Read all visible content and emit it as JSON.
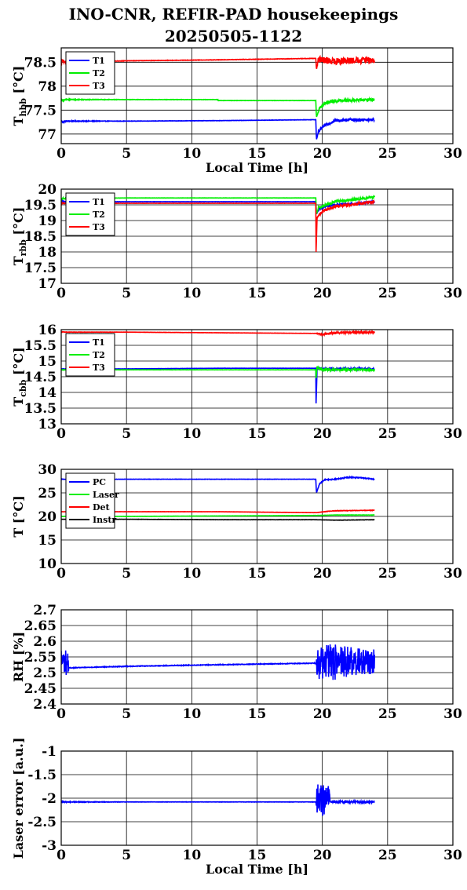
{
  "title": {
    "line1": "INO-CNR, REFIR-PAD housekeepings",
    "line2": "20250505-1122"
  },
  "colors": {
    "blue": "#0000ff",
    "green": "#00ee00",
    "red": "#ff0000",
    "black": "#000000"
  },
  "chart_data": [
    {
      "type": "line",
      "ylabel": "T_hbb [°C]",
      "xlabel": "Local Time [h]",
      "xlim": [
        0,
        30
      ],
      "ylim": [
        76.8,
        78.8
      ],
      "xticks": [
        "0",
        "5",
        "10",
        "15",
        "20",
        "25",
        "30"
      ],
      "yticks": [
        "77",
        "77.5",
        "78",
        "78.5"
      ],
      "ytick_values": [
        77,
        77.5,
        78,
        78.5
      ],
      "grid": true,
      "legend_position": "top-left",
      "series": [
        {
          "name": "T1",
          "color": "#0000ff",
          "x": [
            0,
            0.1,
            0.3,
            5,
            12,
            19.5,
            19.55,
            19.7,
            20,
            20.5,
            21,
            22,
            24
          ],
          "y": [
            77.28,
            77.25,
            77.27,
            77.27,
            77.28,
            77.3,
            76.88,
            77.05,
            77.15,
            77.22,
            77.28,
            77.3,
            77.3
          ],
          "noise": [
            0.03,
            0.03,
            0.01,
            0.003,
            0.003,
            0.003,
            0,
            0.03,
            0.03,
            0.03,
            0.03,
            0.03,
            0.03
          ]
        },
        {
          "name": "T2",
          "color": "#00ee00",
          "x": [
            0,
            0.3,
            5,
            12,
            12.01,
            19.5,
            19.55,
            19.8,
            20.2,
            20.7,
            21.5,
            24
          ],
          "y": [
            77.7,
            77.72,
            77.72,
            77.72,
            77.7,
            77.7,
            77.35,
            77.55,
            77.64,
            77.68,
            77.7,
            77.72
          ],
          "noise": [
            0.03,
            0.01,
            0.003,
            0.003,
            0.003,
            0.003,
            0,
            0.03,
            0.03,
            0.03,
            0.03,
            0.03
          ]
        },
        {
          "name": "T3",
          "color": "#ff0000",
          "x": [
            0,
            0.3,
            5,
            12,
            19.5,
            19.55,
            19.7,
            20,
            21,
            24
          ],
          "y": [
            78.52,
            78.5,
            78.53,
            78.55,
            78.58,
            78.35,
            78.55,
            78.55,
            78.52,
            78.55
          ],
          "noise": [
            0.08,
            0.02,
            0.004,
            0.004,
            0.004,
            0,
            0.07,
            0.07,
            0.07,
            0.07
          ]
        }
      ]
    },
    {
      "type": "line",
      "ylabel": "T_rbb [°C]",
      "xlim": [
        0,
        30
      ],
      "ylim": [
        17,
        20
      ],
      "xticks": [
        "0",
        "5",
        "10",
        "15",
        "20",
        "25",
        "30"
      ],
      "yticks": [
        "17",
        "17.5",
        "18",
        "18.5",
        "19",
        "19.5",
        "20"
      ],
      "ytick_values": [
        17,
        17.5,
        18,
        18.5,
        19,
        19.5,
        20
      ],
      "grid": true,
      "legend_position": "top-left",
      "series": [
        {
          "name": "T1",
          "color": "#0000ff",
          "x": [
            0,
            0.3,
            5,
            12,
            19.5,
            19.55,
            19.7,
            20.2,
            21,
            22,
            23,
            24
          ],
          "y": [
            19.6,
            19.6,
            19.6,
            19.6,
            19.6,
            19.2,
            19.35,
            19.45,
            19.5,
            19.52,
            19.55,
            19.6
          ],
          "noise": [
            0.03,
            0.01,
            0.003,
            0.003,
            0.003,
            0,
            0.03,
            0.03,
            0.03,
            0.03,
            0.03,
            0.03
          ]
        },
        {
          "name": "T2",
          "color": "#00ee00",
          "x": [
            0,
            0.3,
            5,
            12,
            19.5,
            19.55,
            19.7,
            20.2,
            21,
            22,
            23,
            24
          ],
          "y": [
            19.7,
            19.7,
            19.72,
            19.72,
            19.72,
            19.2,
            19.4,
            19.5,
            19.6,
            19.65,
            19.7,
            19.75
          ],
          "noise": [
            0.03,
            0.01,
            0.003,
            0.003,
            0.003,
            0,
            0.04,
            0.04,
            0.04,
            0.04,
            0.04,
            0.04
          ]
        },
        {
          "name": "T3",
          "color": "#ff0000",
          "x": [
            0,
            0.3,
            5,
            12,
            19.5,
            19.52,
            19.6,
            20,
            21,
            22,
            23,
            24
          ],
          "y": [
            19.55,
            19.55,
            19.55,
            19.55,
            19.55,
            18.0,
            19.1,
            19.3,
            19.45,
            19.5,
            19.55,
            19.6
          ],
          "noise": [
            0.03,
            0.01,
            0.003,
            0.003,
            0.003,
            0,
            0.04,
            0.04,
            0.04,
            0.04,
            0.04,
            0.04
          ]
        }
      ]
    },
    {
      "type": "line",
      "ylabel": "T_cbb [°C]",
      "xlim": [
        0,
        30
      ],
      "ylim": [
        13,
        16
      ],
      "xticks": [
        "0",
        "5",
        "10",
        "15",
        "20",
        "25",
        "30"
      ],
      "yticks": [
        "13",
        "13.5",
        "14",
        "14.5",
        "15",
        "15.5",
        "16"
      ],
      "ytick_values": [
        13,
        13.5,
        14,
        14.5,
        15,
        15.5,
        16
      ],
      "grid": true,
      "legend_position": "top-left",
      "series": [
        {
          "name": "T1",
          "color": "#0000ff",
          "x": [
            0,
            0.3,
            5,
            12,
            19.5,
            19.52,
            19.6,
            20,
            24
          ],
          "y": [
            14.75,
            14.75,
            14.75,
            14.77,
            14.77,
            13.65,
            14.75,
            14.75,
            14.75
          ],
          "noise": [
            0.01,
            0.005,
            0.003,
            0.003,
            0.003,
            0,
            0.03,
            0.03,
            0.03
          ]
        },
        {
          "name": "T2",
          "color": "#00ee00",
          "x": [
            0,
            0.3,
            5,
            12,
            19.5,
            19.52,
            19.6,
            20,
            24
          ],
          "y": [
            14.72,
            14.72,
            14.72,
            14.72,
            14.72,
            14.45,
            14.8,
            14.72,
            14.72
          ],
          "noise": [
            0.01,
            0.005,
            0.003,
            0.003,
            0.003,
            0,
            0.04,
            0.03,
            0.03
          ]
        },
        {
          "name": "T3",
          "color": "#ff0000",
          "x": [
            0,
            0.3,
            5,
            12,
            19.5,
            20,
            21,
            24
          ],
          "y": [
            15.93,
            15.92,
            15.92,
            15.9,
            15.88,
            15.85,
            15.9,
            15.92
          ],
          "noise": [
            0.02,
            0.005,
            0.003,
            0.003,
            0.003,
            0.03,
            0.03,
            0.03
          ]
        }
      ]
    },
    {
      "type": "line",
      "ylabel": "T [°C]",
      "xlim": [
        0,
        30
      ],
      "ylim": [
        10,
        30
      ],
      "xticks": [
        "0",
        "5",
        "10",
        "15",
        "20",
        "25",
        "30"
      ],
      "yticks": [
        "10",
        "15",
        "20",
        "25",
        "30"
      ],
      "ytick_values": [
        10,
        15,
        20,
        25,
        30
      ],
      "grid": true,
      "legend_position": "top-left",
      "series": [
        {
          "name": "PC",
          "color": "#0000ff",
          "x": [
            0,
            5,
            12,
            19.5,
            19.55,
            19.8,
            20.2,
            21,
            22,
            23,
            24
          ],
          "y": [
            27.9,
            27.9,
            27.9,
            27.9,
            25.0,
            27.0,
            27.8,
            27.9,
            28.3,
            28.2,
            27.9
          ],
          "noise": [
            0.05,
            0.03,
            0.03,
            0.03,
            0,
            0.1,
            0.1,
            0.1,
            0.1,
            0.1,
            0.1
          ]
        },
        {
          "name": "Laser",
          "color": "#00ee00",
          "x": [
            0,
            5,
            12,
            19.5,
            21,
            24
          ],
          "y": [
            20.0,
            20.0,
            20.1,
            20.2,
            20.3,
            20.3
          ],
          "noise": [
            0.03,
            0.02,
            0.02,
            0.02,
            0.03,
            0.03
          ]
        },
        {
          "name": "Det",
          "color": "#ff0000",
          "x": [
            0,
            5,
            12,
            19.5,
            20.5,
            21,
            24
          ],
          "y": [
            21.0,
            21.0,
            21.0,
            20.8,
            21.1,
            21.2,
            21.3
          ],
          "noise": [
            0.02,
            0.02,
            0.02,
            0.02,
            0.05,
            0.05,
            0.05
          ]
        },
        {
          "name": "Instr",
          "color": "#000000",
          "x": [
            0,
            5,
            12,
            19.5,
            21,
            24
          ],
          "y": [
            19.4,
            19.4,
            19.3,
            19.3,
            19.2,
            19.3
          ],
          "noise": [
            0.02,
            0.02,
            0.02,
            0.02,
            0.03,
            0.03
          ]
        }
      ]
    },
    {
      "type": "line",
      "ylabel": "RH [%]",
      "xlim": [
        0,
        30
      ],
      "ylim": [
        2.4,
        2.7
      ],
      "xticks": [
        "0",
        "5",
        "10",
        "15",
        "20",
        "25",
        "30"
      ],
      "yticks": [
        "2.4",
        "2.45",
        "2.5",
        "2.55",
        "2.6",
        "2.65",
        "2.7"
      ],
      "ytick_values": [
        2.4,
        2.45,
        2.5,
        2.55,
        2.6,
        2.65,
        2.7
      ],
      "grid": true,
      "legend_position": "none",
      "series": [
        {
          "name": "",
          "color": "#0000ff",
          "x": [
            0,
            0.5,
            0.6,
            5,
            12,
            19.5,
            19.6,
            21,
            22,
            23,
            24
          ],
          "y": [
            2.54,
            2.53,
            2.515,
            2.52,
            2.525,
            2.53,
            2.53,
            2.535,
            2.535,
            2.535,
            2.535
          ],
          "noise": [
            0.04,
            0.04,
            0.001,
            0.001,
            0.001,
            0.001,
            0.05,
            0.06,
            0.05,
            0.04,
            0.04
          ]
        }
      ]
    },
    {
      "type": "line",
      "ylabel": "Laser error [a.u.]",
      "xlabel": "Local Time [h]",
      "xlim": [
        0,
        30
      ],
      "ylim": [
        -3,
        -1
      ],
      "xticks": [
        "0",
        "5",
        "10",
        "15",
        "20",
        "25",
        "30"
      ],
      "yticks": [
        "-3",
        "-2.5",
        "-2",
        "-1.5",
        "-1"
      ],
      "ytick_values": [
        -3,
        -2.5,
        -2,
        -1.5,
        -1
      ],
      "grid": true,
      "legend_position": "none",
      "series": [
        {
          "name": "",
          "color": "#0000ff",
          "x": [
            0,
            5,
            12,
            19.5,
            19.6,
            20.5,
            20.6,
            24
          ],
          "y": [
            -2.08,
            -2.08,
            -2.08,
            -2.08,
            -2.05,
            -2.05,
            -2.08,
            -2.08
          ],
          "noise": [
            0.01,
            0.003,
            0.003,
            0.003,
            0.35,
            0.35,
            0.02,
            0.02
          ]
        }
      ]
    }
  ]
}
